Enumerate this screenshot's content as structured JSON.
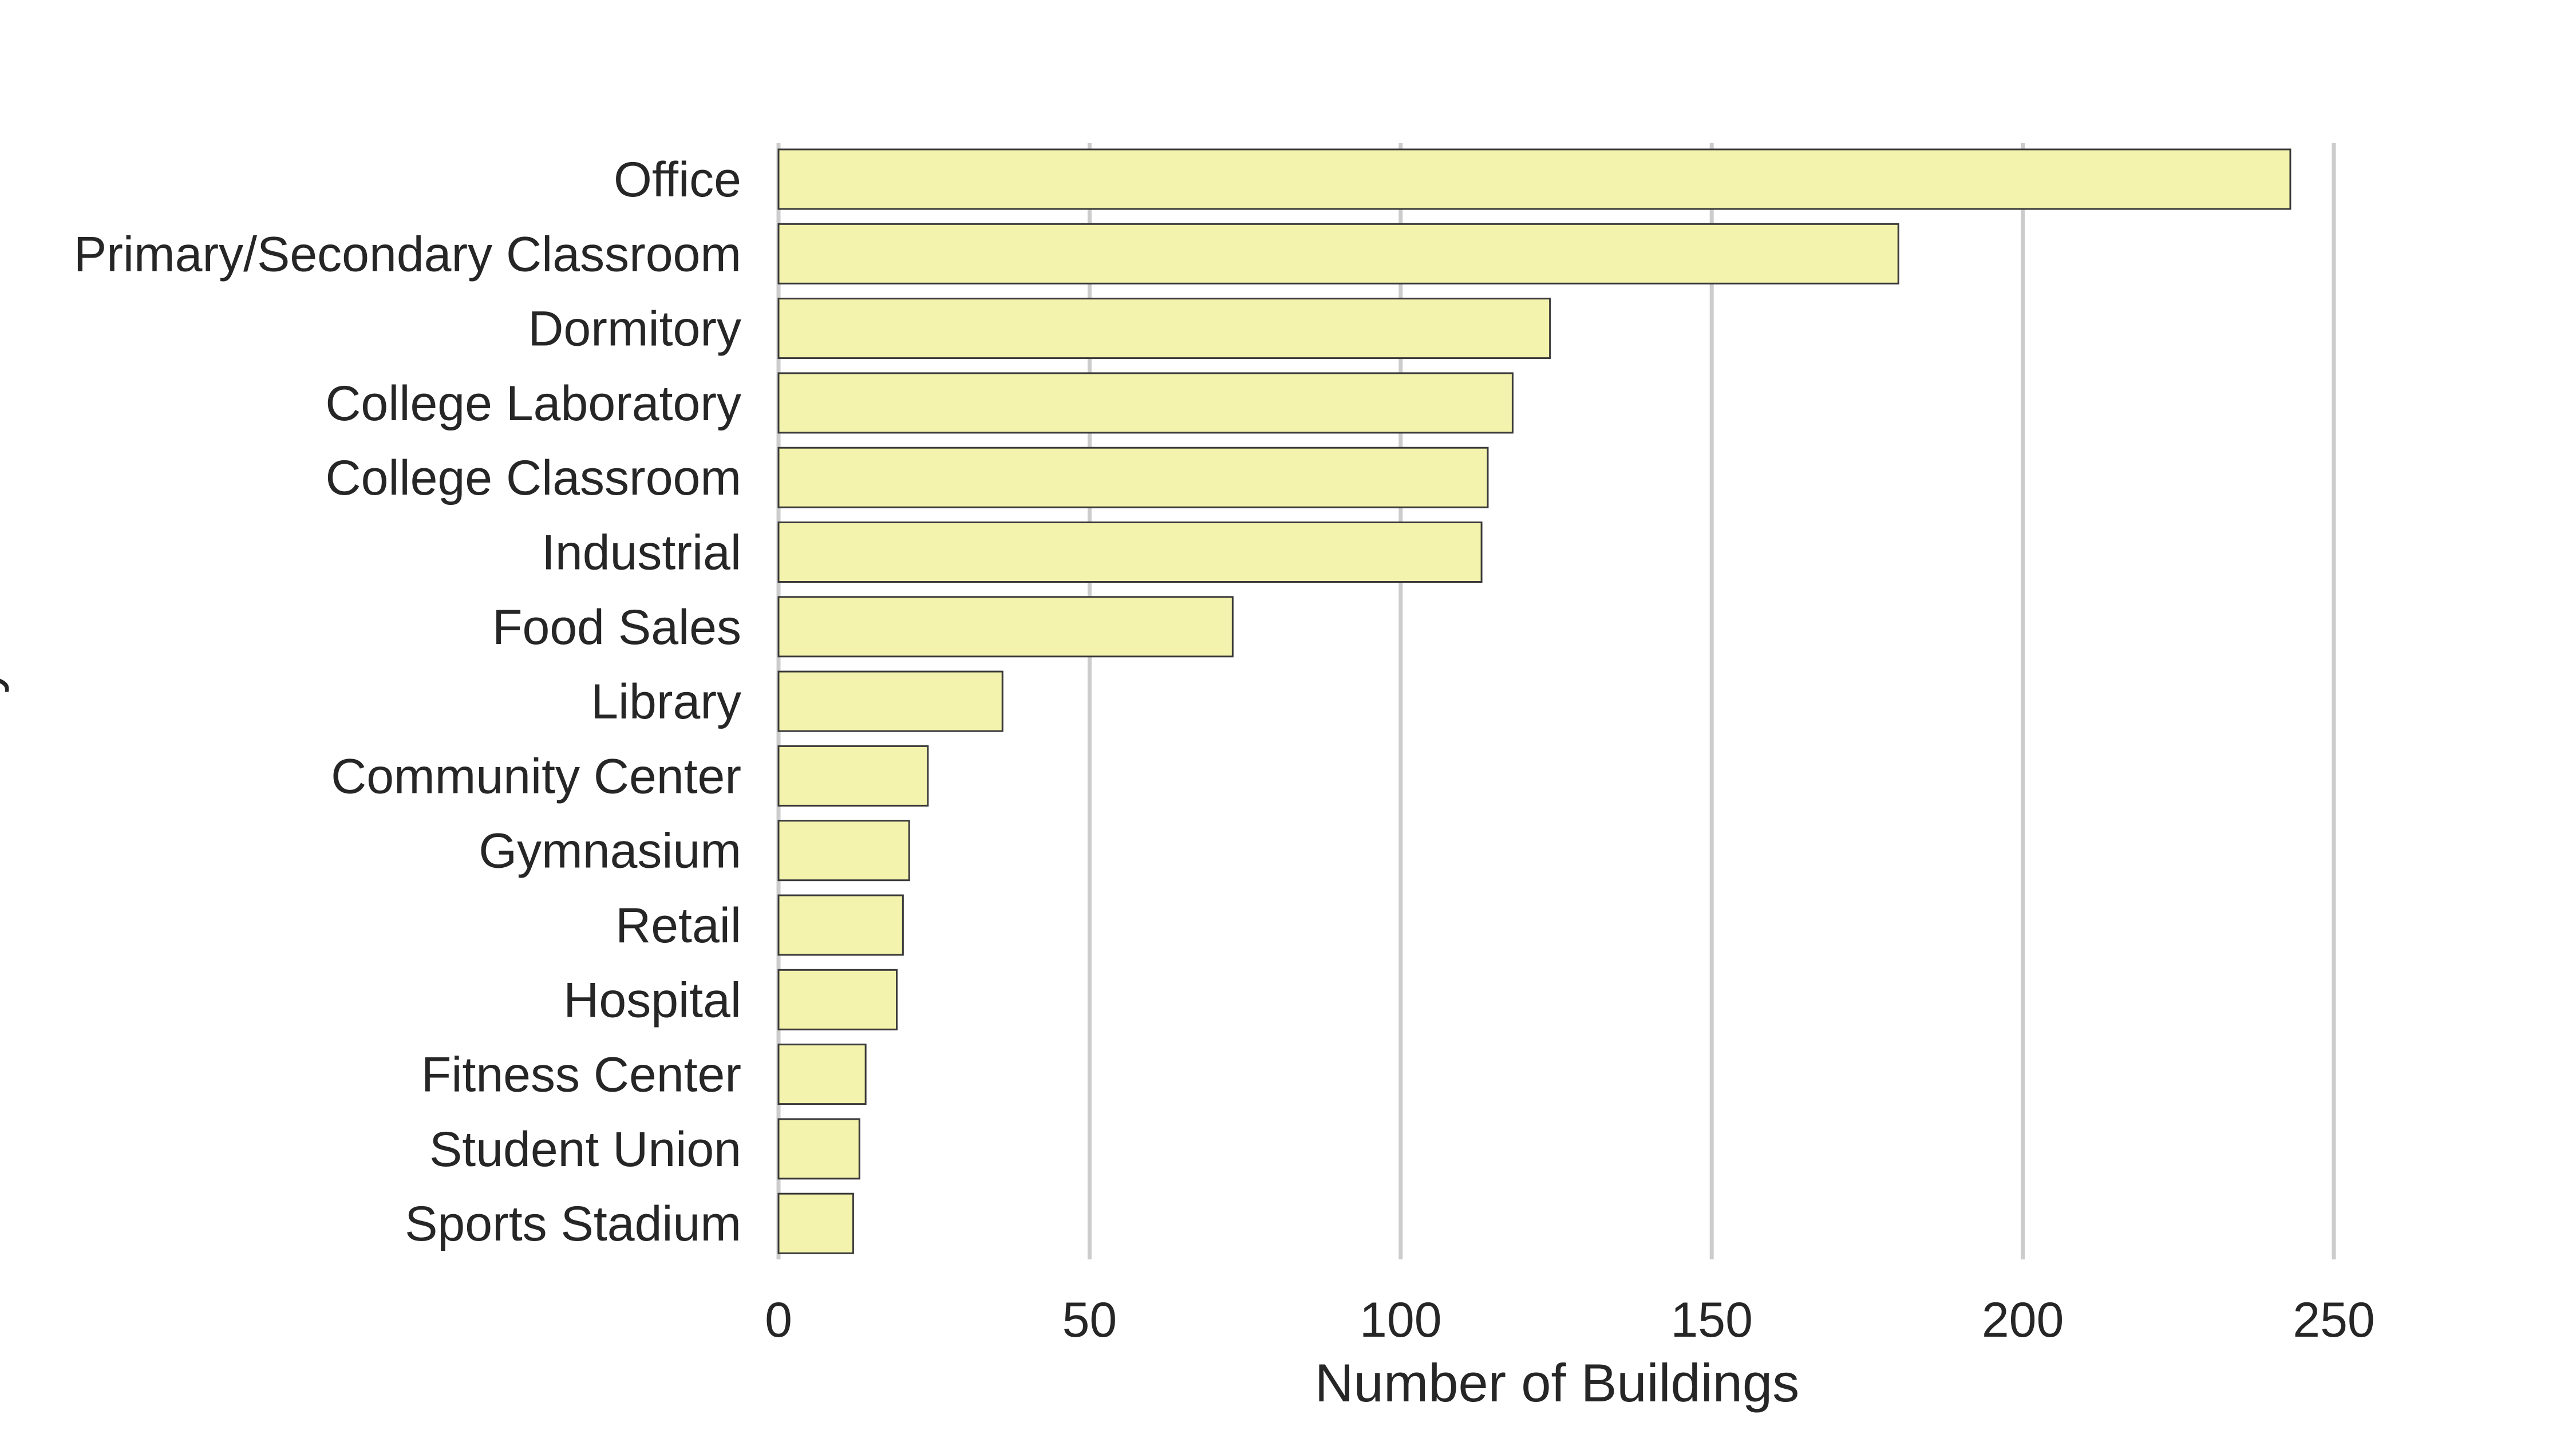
{
  "chart_data": {
    "type": "bar",
    "orientation": "horizontal",
    "categories": [
      "Office",
      "Primary/Secondary Classroom",
      "Dormitory",
      "College Laboratory",
      "College Classroom",
      "Industrial",
      "Food Sales",
      "Library",
      "Community Center",
      "Gymnasium",
      "Retail",
      "Hospital",
      "Fitness Center",
      "Student Union",
      "Sports Stadium"
    ],
    "values": [
      243,
      180,
      124,
      118,
      114,
      113,
      73,
      36,
      24,
      21,
      20,
      19,
      14,
      13,
      12
    ],
    "xlabel": "Number of Buildings",
    "ylabel": "Primary Use",
    "xlim": [
      0,
      260
    ],
    "xticks": [
      0,
      50,
      100,
      150,
      200,
      250
    ],
    "grid": "vertical",
    "colors": {
      "bar_fill": "#f3f3ad",
      "bar_edge": "#3a3a3a",
      "grid": "#cccccc",
      "text": "#262626"
    }
  }
}
